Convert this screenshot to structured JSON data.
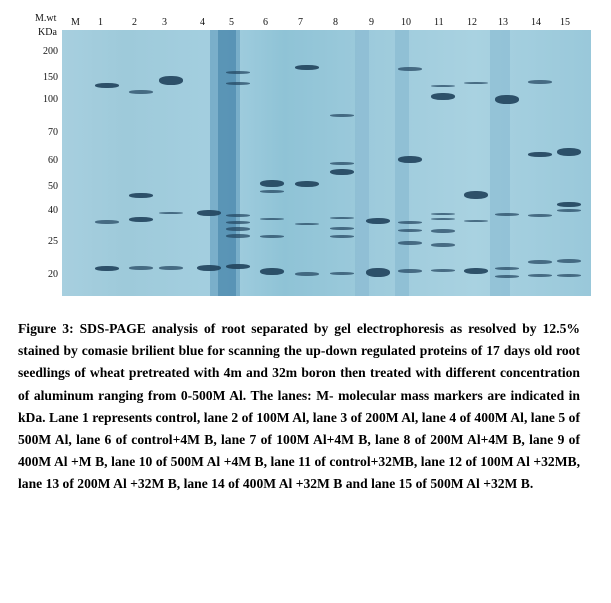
{
  "figure": {
    "marker_header": [
      "M.wt",
      "KDa"
    ],
    "lane_labels": [
      "M",
      "1",
      "2",
      "3",
      "4",
      "5",
      "6",
      "7",
      "8",
      "9",
      "10",
      "11",
      "12",
      "13",
      "14",
      "15"
    ],
    "mw_labels": [
      "200",
      "150",
      "100",
      "70",
      "60",
      "50",
      "40",
      "25",
      "20"
    ],
    "band_color": "#20425c",
    "gel_color": "#a3cde0"
  },
  "caption": {
    "text": "Figure 3: SDS-PAGE analysis of root separated by gel electrophoresis as resolved by 12.5% stained by comasie brilient blue for scanning the up-down regulated proteins of 17 days old root seedlings of wheat pretreated with 4m and 32m boron then treated with different concentration of aluminum ranging from 0-500M Al. The lanes: M- molecular mass markers are indicated in kDa. Lane 1 represents control, lane 2  of 100M Al, lane 3 of 200M Al, lane 4 of 400M Al, lane 5 of 500M Al, lane 6 of control+4M B, lane 7 of 100M Al+4M B, lane 8 of 200M Al+4M B, lane  9 of 400M Al +M B, lane 10 of 500M Al +4M B, lane 11 of control+32MB, lane 12 of 100M Al +32MB, lane  13 of 200M Al +32M B, lane 14 of 400M Al +32M B and lane 15 of 500M Al +32M B."
  }
}
